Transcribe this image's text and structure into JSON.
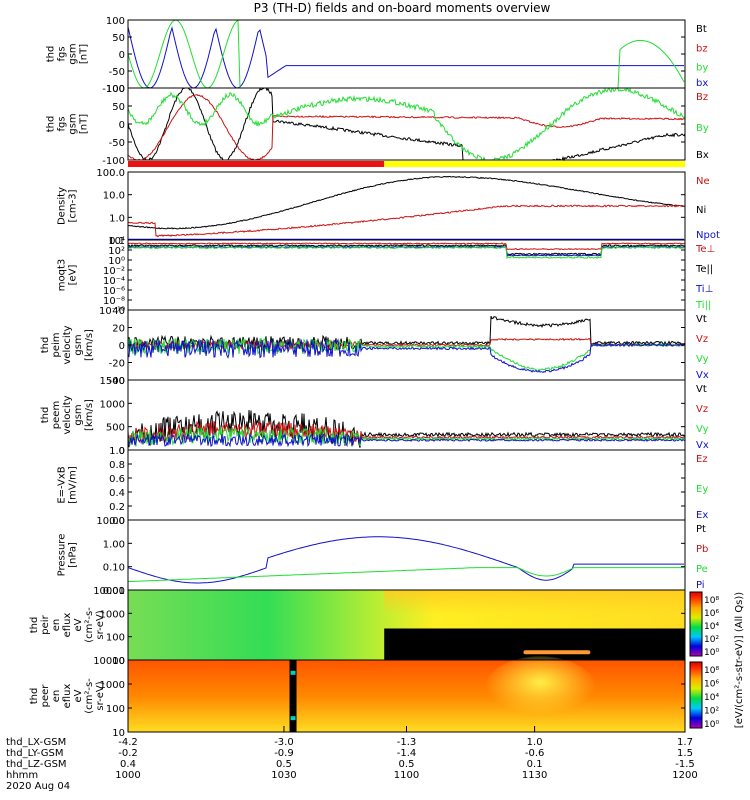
{
  "title": "P3 (TH-D) fields and on-board moments overview",
  "colors": {
    "black": "#000000",
    "red": "#cc1111",
    "green": "#22dd33",
    "blue": "#1111cc",
    "bar_red": "#ee1111",
    "bar_yellow": "#ffff00"
  },
  "chart_data": [
    {
      "id": "fgs-zoom",
      "type": "line",
      "ylabel": [
        "thd",
        "fgs",
        "gsm",
        "[nT]"
      ],
      "ylim": [
        -100,
        100
      ],
      "yticks": [
        "100",
        "50",
        "0",
        "-50",
        "-100"
      ],
      "legend": [
        {
          "text": "Bt",
          "color": "#000000"
        },
        {
          "text": "bz",
          "color": "#cc1111"
        },
        {
          "text": "by",
          "color": "#22dd33"
        },
        {
          "text": "bx",
          "color": "#1111cc"
        }
      ]
    },
    {
      "id": "fgs",
      "type": "line",
      "ylabel": [
        "thd",
        "fgs",
        "gsm",
        "[nT]"
      ],
      "ylim": [
        -120,
        120
      ],
      "yticks": [
        "100",
        "50",
        "0",
        "-50",
        "-100"
      ],
      "legend": [
        {
          "text": "Bz",
          "color": "#cc1111"
        },
        {
          "text": "By",
          "color": "#22dd33"
        },
        {
          "text": "Bx",
          "color": "#000000"
        }
      ]
    },
    {
      "id": "density",
      "type": "line",
      "yscale": "log",
      "ylabel": [
        "Density",
        "[cm-3]"
      ],
      "yticks": [
        "100.0",
        "10.0",
        "1.0",
        "0.1"
      ],
      "legend": [
        {
          "text": "Ne",
          "color": "#cc1111"
        },
        {
          "text": "Ni",
          "color": "#000000"
        },
        {
          "text": "Npot",
          "color": "#1111cc"
        }
      ]
    },
    {
      "id": "temperature",
      "type": "line",
      "yscale": "log",
      "ylabel": [
        "moqt3",
        "[eV]"
      ],
      "yticks": [
        "10⁴",
        "10²",
        "10⁰",
        "10⁻²",
        "10⁻⁴",
        "10⁻⁶",
        "10⁻⁸",
        "10⁻¹⁰"
      ],
      "legend": [
        {
          "text": "Te⊥",
          "color": "#cc1111"
        },
        {
          "text": "Te||",
          "color": "#000000"
        },
        {
          "text": "Ti⊥",
          "color": "#1111cc"
        },
        {
          "text": "Ti||",
          "color": "#22dd33"
        }
      ]
    },
    {
      "id": "peim-velocity",
      "type": "line",
      "ylabel": [
        "thd",
        "peim",
        "velocity",
        "gsm",
        "[km/s]"
      ],
      "ylim": [
        -40,
        40
      ],
      "yticks": [
        "40",
        "20",
        "0",
        "-20",
        "-40"
      ],
      "legend": [
        {
          "text": "Vt",
          "color": "#000000"
        },
        {
          "text": "Vz",
          "color": "#cc1111"
        },
        {
          "text": "Vy",
          "color": "#22dd33"
        },
        {
          "text": "Vx",
          "color": "#1111cc"
        }
      ]
    },
    {
      "id": "peem-velocity",
      "type": "line",
      "ylabel": [
        "thd",
        "peem",
        "velocity",
        "gsm",
        "[km/s]"
      ],
      "ylim": [
        -100,
        1500
      ],
      "yticks": [
        "1500",
        "1000",
        "500",
        "0"
      ],
      "legend": [
        {
          "text": "Vt",
          "color": "#000000"
        },
        {
          "text": "Vz",
          "color": "#cc1111"
        },
        {
          "text": "Vy",
          "color": "#22dd33"
        },
        {
          "text": "Vx",
          "color": "#1111cc"
        }
      ]
    },
    {
      "id": "efield",
      "type": "line",
      "ylabel": [
        "E=-VxB",
        "[mV/m]"
      ],
      "ylim": [
        0,
        1
      ],
      "yticks": [
        "1.0",
        "0.8",
        "0.6",
        "0.4",
        "0.2",
        "0.0"
      ],
      "legend": [
        {
          "text": "Ez",
          "color": "#cc1111"
        },
        {
          "text": "Ey",
          "color": "#22dd33"
        },
        {
          "text": "Ex",
          "color": "#1111cc"
        }
      ]
    },
    {
      "id": "pressure",
      "type": "line",
      "yscale": "log",
      "ylabel": [
        "Pressure",
        "[nPa]"
      ],
      "yticks": [
        "10.00",
        "1.00",
        "0.10",
        "0.01"
      ],
      "legend": [
        {
          "text": "Pt",
          "color": "#000000"
        },
        {
          "text": "Pb",
          "color": "#cc1111"
        },
        {
          "text": "Pe",
          "color": "#22dd33"
        },
        {
          "text": "Pi",
          "color": "#1111cc"
        }
      ]
    },
    {
      "id": "peir-spectrogram",
      "type": "heatmap",
      "ylabel": [
        "thd",
        "peir",
        "en",
        "eflux",
        "eV",
        "(cm²-s-",
        "sr-eV)"
      ],
      "yticks": [
        "10000",
        "1000",
        "100",
        "10"
      ],
      "colorbar_ticks": [
        "10⁸",
        "10⁶",
        "10⁴",
        "10²",
        "10⁰"
      ]
    },
    {
      "id": "peer-spectrogram",
      "type": "heatmap",
      "ylabel": [
        "thd",
        "peer",
        "en",
        "eflux",
        "eV",
        "(cm²-s-",
        "sr-eV)"
      ],
      "yticks": [
        "10000",
        "1000",
        "100",
        "10"
      ],
      "colorbar_ticks": [
        "10⁸",
        "10⁶",
        "10⁴",
        "10²",
        "10⁰"
      ]
    }
  ],
  "colorbar_label": "[eV/(cm²-s-str-eV)] (All Qs))",
  "axis": {
    "row_labels": [
      "thd_LX-GSM",
      "thd_LY-GSM",
      "thd_LZ-GSM",
      "hhmm",
      "2020 Aug 04"
    ],
    "lx": [
      "-4.2",
      "-3.0",
      "-1.3",
      "1.0",
      "1.7"
    ],
    "ly": [
      "-0.2",
      "-0.9",
      "-1.4",
      "-0.6",
      "1.5"
    ],
    "lz": [
      "0.4",
      "0.5",
      "0.5",
      "0.1",
      "-1.5"
    ],
    "hhmm": [
      "1000",
      "1030",
      "1100",
      "1130",
      "1200"
    ]
  }
}
